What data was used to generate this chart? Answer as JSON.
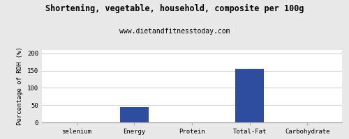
{
  "title": "Shortening, vegetable, household, composite per 100g",
  "subtitle": "www.dietandfitnesstoday.com",
  "categories": [
    "selenium",
    "Energy",
    "Protein",
    "Total-Fat",
    "Carbohydrate"
  ],
  "values": [
    0,
    45,
    0,
    155,
    0
  ],
  "bar_color": "#2e4d9e",
  "ylabel": "Percentage of RDH (%)",
  "ylim": [
    0,
    210
  ],
  "yticks": [
    0,
    50,
    100,
    150,
    200
  ],
  "background_color": "#e8e8e8",
  "plot_bg_color": "#ffffff",
  "title_fontsize": 8.5,
  "subtitle_fontsize": 7,
  "tick_fontsize": 6.5,
  "ylabel_fontsize": 6.5,
  "grid_color": "#cccccc"
}
